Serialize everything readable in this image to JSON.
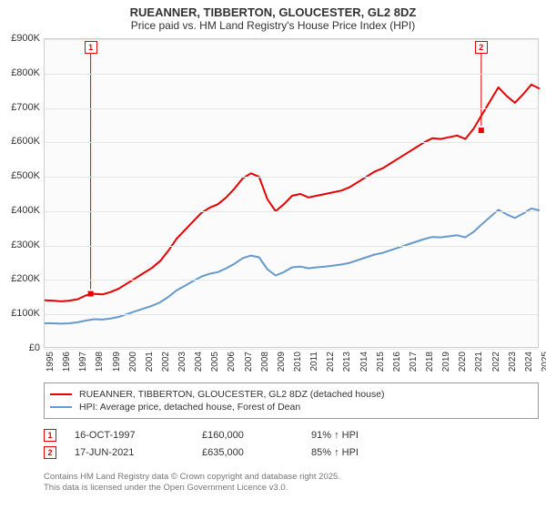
{
  "header": {
    "line1": "RUEANNER, TIBBERTON, GLOUCESTER, GL2 8DZ",
    "line2": "Price paid vs. HM Land Registry's House Price Index (HPI)"
  },
  "chart": {
    "type": "line",
    "background_color": "#fbfbfb",
    "grid_color": "#e6e6e6",
    "axis_color": "#cccccc",
    "title_fontsize": 13,
    "subtitle_fontsize": 12,
    "label_fontsize": 11,
    "x_axis": {
      "min_year": 1995,
      "max_year": 2025,
      "ticks": [
        1995,
        1996,
        1997,
        1998,
        1999,
        2000,
        2001,
        2002,
        2003,
        2004,
        2005,
        2006,
        2007,
        2008,
        2009,
        2010,
        2011,
        2012,
        2013,
        2014,
        2015,
        2016,
        2017,
        2018,
        2019,
        2020,
        2021,
        2022,
        2023,
        2024,
        2025
      ]
    },
    "y_axis": {
      "min": 0,
      "max": 900000,
      "tick_step": 100000,
      "tick_labels": [
        "£0",
        "£100K",
        "£200K",
        "£300K",
        "£400K",
        "£500K",
        "£600K",
        "£700K",
        "£800K",
        "£900K"
      ]
    },
    "series": [
      {
        "name": "RUEANNER, TIBBERTON, GLOUCESTER, GL2 8DZ (detached house)",
        "color": "#e60000",
        "line_width": 2,
        "points": [
          [
            1995,
            141000
          ],
          [
            1995.5,
            140000
          ],
          [
            1996,
            138000
          ],
          [
            1996.5,
            140000
          ],
          [
            1997,
            144000
          ],
          [
            1997.5,
            155000
          ],
          [
            1998,
            160000
          ],
          [
            1998.5,
            158000
          ],
          [
            1999,
            165000
          ],
          [
            1999.5,
            175000
          ],
          [
            2000,
            190000
          ],
          [
            2000.5,
            205000
          ],
          [
            2001,
            220000
          ],
          [
            2001.5,
            235000
          ],
          [
            2002,
            255000
          ],
          [
            2002.5,
            285000
          ],
          [
            2003,
            320000
          ],
          [
            2003.5,
            345000
          ],
          [
            2004,
            370000
          ],
          [
            2004.5,
            395000
          ],
          [
            2005,
            410000
          ],
          [
            2005.5,
            420000
          ],
          [
            2006,
            440000
          ],
          [
            2006.5,
            465000
          ],
          [
            2007,
            495000
          ],
          [
            2007.5,
            510000
          ],
          [
            2008,
            500000
          ],
          [
            2008.5,
            435000
          ],
          [
            2009,
            400000
          ],
          [
            2009.5,
            420000
          ],
          [
            2010,
            445000
          ],
          [
            2010.5,
            450000
          ],
          [
            2011,
            440000
          ],
          [
            2011.5,
            445000
          ],
          [
            2012,
            450000
          ],
          [
            2012.5,
            455000
          ],
          [
            2013,
            460000
          ],
          [
            2013.5,
            470000
          ],
          [
            2014,
            485000
          ],
          [
            2014.5,
            500000
          ],
          [
            2015,
            515000
          ],
          [
            2015.5,
            525000
          ],
          [
            2016,
            540000
          ],
          [
            2016.5,
            555000
          ],
          [
            2017,
            570000
          ],
          [
            2017.5,
            585000
          ],
          [
            2018,
            600000
          ],
          [
            2018.5,
            612000
          ],
          [
            2019,
            610000
          ],
          [
            2019.5,
            615000
          ],
          [
            2020,
            620000
          ],
          [
            2020.5,
            610000
          ],
          [
            2021,
            640000
          ],
          [
            2021.5,
            680000
          ],
          [
            2022,
            720000
          ],
          [
            2022.5,
            760000
          ],
          [
            2023,
            735000
          ],
          [
            2023.5,
            715000
          ],
          [
            2024,
            740000
          ],
          [
            2024.5,
            768000
          ],
          [
            2025,
            756000
          ]
        ]
      },
      {
        "name": "HPI: Average price, detached house, Forest of Dean",
        "color": "#6699cc",
        "line_width": 2,
        "points": [
          [
            1995,
            74000
          ],
          [
            1995.5,
            74000
          ],
          [
            1996,
            73000
          ],
          [
            1996.5,
            74000
          ],
          [
            1997,
            77000
          ],
          [
            1997.5,
            82000
          ],
          [
            1998,
            86000
          ],
          [
            1998.5,
            85000
          ],
          [
            1999,
            88000
          ],
          [
            1999.5,
            93000
          ],
          [
            2000,
            101000
          ],
          [
            2000.5,
            109000
          ],
          [
            2001,
            117000
          ],
          [
            2001.5,
            125000
          ],
          [
            2002,
            135000
          ],
          [
            2002.5,
            151000
          ],
          [
            2003,
            170000
          ],
          [
            2003.5,
            183000
          ],
          [
            2004,
            197000
          ],
          [
            2004.5,
            210000
          ],
          [
            2005,
            218000
          ],
          [
            2005.5,
            223000
          ],
          [
            2006,
            234000
          ],
          [
            2006.5,
            247000
          ],
          [
            2007,
            263000
          ],
          [
            2007.5,
            271000
          ],
          [
            2008,
            266000
          ],
          [
            2008.5,
            231000
          ],
          [
            2009,
            213000
          ],
          [
            2009.5,
            223000
          ],
          [
            2010,
            237000
          ],
          [
            2010.5,
            239000
          ],
          [
            2011,
            234000
          ],
          [
            2011.5,
            237000
          ],
          [
            2012,
            239000
          ],
          [
            2012.5,
            242000
          ],
          [
            2013,
            245000
          ],
          [
            2013.5,
            250000
          ],
          [
            2014,
            258000
          ],
          [
            2014.5,
            266000
          ],
          [
            2015,
            274000
          ],
          [
            2015.5,
            279000
          ],
          [
            2016,
            287000
          ],
          [
            2016.5,
            295000
          ],
          [
            2017,
            303000
          ],
          [
            2017.5,
            311000
          ],
          [
            2018,
            319000
          ],
          [
            2018.5,
            325000
          ],
          [
            2019,
            324000
          ],
          [
            2019.5,
            327000
          ],
          [
            2020,
            330000
          ],
          [
            2020.5,
            324000
          ],
          [
            2021,
            340000
          ],
          [
            2021.5,
            362000
          ],
          [
            2022,
            383000
          ],
          [
            2022.5,
            404000
          ],
          [
            2023,
            391000
          ],
          [
            2023.5,
            380000
          ],
          [
            2024,
            393000
          ],
          [
            2024.5,
            408000
          ],
          [
            2025,
            402000
          ]
        ]
      }
    ],
    "sale_markers": [
      {
        "num": "1",
        "year": 1997.79,
        "value": 160000,
        "color": "#e60000"
      },
      {
        "num": "2",
        "year": 2021.46,
        "value": 635000,
        "color": "#e60000"
      }
    ]
  },
  "legend": {
    "border_color": "#999999",
    "items": [
      {
        "color": "#e60000",
        "label": "RUEANNER, TIBBERTON, GLOUCESTER, GL2 8DZ (detached house)"
      },
      {
        "color": "#6699cc",
        "label": "HPI: Average price, detached house, Forest of Dean"
      }
    ]
  },
  "sales": [
    {
      "num": "1",
      "date": "16-OCT-1997",
      "price": "£160,000",
      "hpi_pct": "91% ↑ HPI",
      "color": "#e60000"
    },
    {
      "num": "2",
      "date": "17-JUN-2021",
      "price": "£635,000",
      "hpi_pct": "85% ↑ HPI",
      "color": "#e60000"
    }
  ],
  "footer": {
    "line1": "Contains HM Land Registry data © Crown copyright and database right 2025.",
    "line2": "This data is licensed under the Open Government Licence v3.0."
  }
}
